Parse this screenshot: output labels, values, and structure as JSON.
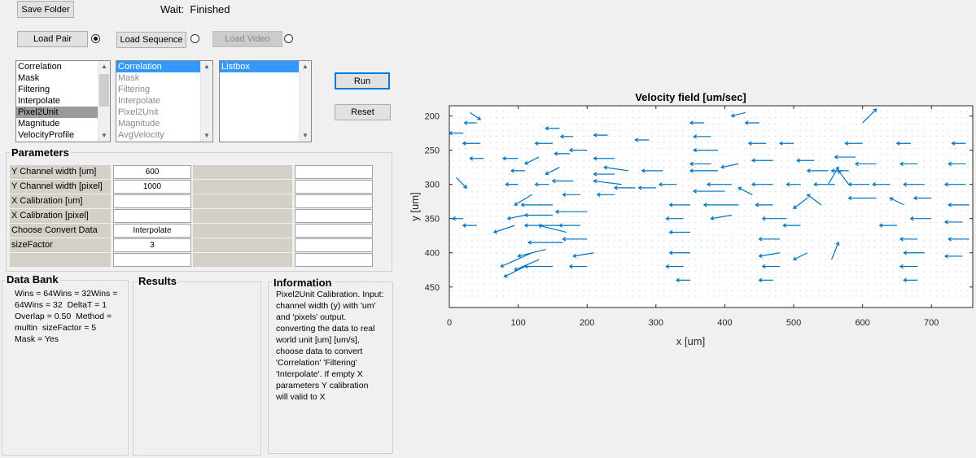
{
  "toolbar": {
    "save_folder": "Save Folder",
    "status_prefix": "Wait:",
    "status_value": "Finished",
    "load_pair": "Load Pair",
    "load_sequence": "Load Sequence",
    "load_video": "Load Video",
    "run": "Run",
    "reset": "Reset"
  },
  "process_list": {
    "items": [
      "Correlation",
      "Mask",
      "Filtering",
      "Interpolate",
      "Pixel2Unit",
      "Magnitude",
      "VelocityProfile"
    ],
    "selected_index": 4
  },
  "step_list": {
    "items": [
      "Correlation",
      "Mask",
      "Filtering",
      "Interpolate",
      "Pixel2Unit",
      "Magnitude",
      "AvgVelocity"
    ],
    "selected_index": 0
  },
  "output_list": {
    "items": [
      "Listbox"
    ],
    "selected_index": 0
  },
  "parameters": {
    "title": "Parameters",
    "rows": [
      {
        "label": "Y Channel width [um]",
        "value": "600"
      },
      {
        "label": "Y Channel width [pixel]",
        "value": "1000"
      },
      {
        "label": "X Calibration [um]",
        "value": ""
      },
      {
        "label": "X Calibration [pixel]",
        "value": ""
      },
      {
        "label": "Choose Convert Data",
        "value": "Interpolate"
      },
      {
        "label": "sizeFactor",
        "value": "3"
      },
      {
        "label": "",
        "value": ""
      }
    ]
  },
  "data_bank": {
    "title": "Data Bank",
    "text": "Wins = 64Wins = 32Wins =\n64Wins = 32  DeltaT = 1\nOverlap = 0.50  Method =\nmultin  sizeFactor = 5\nMask = Yes"
  },
  "results": {
    "title": "Results"
  },
  "information": {
    "title": "Information",
    "text": "Pixel2Unit Calibration. Input:\nchannel width (y) with 'um'\nand 'pixels' output.\nconverting the data to real\nworld unit [um] [um/s],\nchoose data to convert\n'Correlation' 'Filtering'\n'Interpolate'. If empty X\nparameters Y calibration\nwill valid to X"
  },
  "chart_data": {
    "type": "quiver",
    "title": "Velocity field [um/sec]",
    "xlabel": "x [um]",
    "ylabel": "y [um]",
    "xlim": [
      0,
      760
    ],
    "ylim": [
      185,
      480
    ],
    "y_inverted": true,
    "xticks": [
      0,
      100,
      200,
      300,
      400,
      500,
      600,
      700
    ],
    "yticks": [
      200,
      250,
      300,
      350,
      400,
      450
    ],
    "arrow_color": "#0072bd",
    "grid": false,
    "vectors": [
      [
        30,
        195,
        15,
        10
      ],
      [
        40,
        210,
        -18,
        0
      ],
      [
        20,
        225,
        -20,
        0
      ],
      [
        45,
        240,
        -25,
        0
      ],
      [
        50,
        262,
        -20,
        0
      ],
      [
        10,
        290,
        15,
        15
      ],
      [
        20,
        350,
        -15,
        0
      ],
      [
        40,
        360,
        -20,
        0
      ],
      [
        100,
        262,
        -22,
        0
      ],
      [
        110,
        280,
        -20,
        0
      ],
      [
        100,
        300,
        -18,
        0
      ],
      [
        120,
        315,
        -25,
        15
      ],
      [
        160,
        218,
        -20,
        0
      ],
      [
        150,
        240,
        -25,
        0
      ],
      [
        160,
        275,
        -20,
        10
      ],
      [
        145,
        300,
        -20,
        0
      ],
      [
        150,
        330,
        -45,
        0
      ],
      [
        150,
        345,
        -40,
        0
      ],
      [
        160,
        360,
        -50,
        0
      ],
      [
        170,
        370,
        -40,
        -10
      ],
      [
        165,
        385,
        -50,
        0
      ],
      [
        140,
        395,
        -40,
        10
      ],
      [
        130,
        410,
        -35,
        15
      ],
      [
        150,
        420,
        -40,
        0
      ],
      [
        180,
        230,
        -18,
        0
      ],
      [
        175,
        255,
        -22,
        0
      ],
      [
        180,
        295,
        -30,
        0
      ],
      [
        190,
        315,
        -25,
        0
      ],
      [
        200,
        340,
        -45,
        0
      ],
      [
        190,
        360,
        -30,
        0
      ],
      [
        200,
        380,
        -35,
        0
      ],
      [
        210,
        400,
        -30,
        5
      ],
      [
        200,
        420,
        -25,
        0
      ],
      [
        230,
        228,
        -20,
        0
      ],
      [
        240,
        262,
        -30,
        0
      ],
      [
        240,
        285,
        -30,
        0
      ],
      [
        250,
        300,
        -40,
        -5
      ],
      [
        240,
        315,
        -25,
        0
      ],
      [
        270,
        305,
        -30,
        0
      ],
      [
        300,
        305,
        -25,
        0
      ],
      [
        330,
        300,
        -25,
        0
      ],
      [
        350,
        330,
        -30,
        0
      ],
      [
        340,
        350,
        -25,
        0
      ],
      [
        350,
        370,
        -30,
        0
      ],
      [
        350,
        400,
        -30,
        0
      ],
      [
        340,
        420,
        -25,
        0
      ],
      [
        350,
        440,
        -20,
        0
      ],
      [
        370,
        210,
        -20,
        0
      ],
      [
        380,
        230,
        -25,
        0
      ],
      [
        390,
        250,
        -35,
        0
      ],
      [
        380,
        270,
        -30,
        0
      ],
      [
        390,
        280,
        -40,
        0
      ],
      [
        410,
        300,
        -35,
        0
      ],
      [
        400,
        310,
        -45,
        0
      ],
      [
        420,
        330,
        -50,
        0
      ],
      [
        410,
        345,
        -30,
        5
      ],
      [
        450,
        210,
        -20,
        0
      ],
      [
        460,
        240,
        -25,
        0
      ],
      [
        470,
        265,
        -30,
        0
      ],
      [
        470,
        300,
        -30,
        0
      ],
      [
        470,
        330,
        -25,
        0
      ],
      [
        490,
        350,
        -35,
        0
      ],
      [
        480,
        380,
        -30,
        0
      ],
      [
        480,
        400,
        -30,
        5
      ],
      [
        480,
        420,
        -25,
        0
      ],
      [
        470,
        440,
        -20,
        0
      ],
      [
        510,
        300,
        -20,
        0
      ],
      [
        520,
        320,
        -20,
        15
      ],
      [
        530,
        265,
        -25,
        0
      ],
      [
        550,
        280,
        -30,
        0
      ],
      [
        560,
        300,
        -30,
        0
      ],
      [
        580,
        300,
        -15,
        -20
      ],
      [
        590,
        260,
        -30,
        0
      ],
      [
        580,
        280,
        -25,
        0
      ],
      [
        610,
        300,
        -30,
        0
      ],
      [
        620,
        320,
        -40,
        0
      ],
      [
        640,
        300,
        -25,
        0
      ],
      [
        600,
        210,
        20,
        -20
      ],
      [
        550,
        300,
        15,
        -25
      ],
      [
        540,
        330,
        -20,
        -15
      ],
      [
        670,
        240,
        -20,
        0
      ],
      [
        680,
        270,
        -25,
        0
      ],
      [
        690,
        300,
        -30,
        0
      ],
      [
        700,
        320,
        -25,
        0
      ],
      [
        700,
        350,
        -30,
        0
      ],
      [
        680,
        380,
        -25,
        0
      ],
      [
        690,
        400,
        -30,
        0
      ],
      [
        680,
        420,
        -25,
        0
      ],
      [
        680,
        440,
        -20,
        0
      ],
      [
        750,
        240,
        -20,
        0
      ],
      [
        750,
        270,
        -25,
        0
      ],
      [
        750,
        300,
        -30,
        0
      ],
      [
        755,
        330,
        -30,
        0
      ],
      [
        745,
        355,
        -25,
        0
      ],
      [
        755,
        380,
        -30,
        0
      ],
      [
        745,
        405,
        -25,
        0
      ],
      [
        110,
        345,
        -25,
        5
      ],
      [
        95,
        360,
        -30,
        10
      ],
      [
        120,
        400,
        -45,
        20
      ],
      [
        110,
        420,
        -30,
        15
      ],
      [
        260,
        280,
        -35,
        -5
      ],
      [
        310,
        280,
        -30,
        0
      ],
      [
        420,
        270,
        -25,
        5
      ],
      [
        440,
        315,
        -20,
        -10
      ],
      [
        600,
        240,
        -25,
        0
      ],
      [
        620,
        270,
        -30,
        0
      ],
      [
        650,
        360,
        -25,
        0
      ],
      [
        660,
        330,
        -20,
        -10
      ],
      [
        130,
        260,
        -20,
        10
      ],
      [
        200,
        250,
        -25,
        0
      ],
      [
        290,
        235,
        -20,
        0
      ],
      [
        430,
        195,
        -20,
        5
      ],
      [
        510,
        360,
        -25,
        0
      ],
      [
        520,
        400,
        -20,
        10
      ],
      [
        555,
        410,
        10,
        -25
      ],
      [
        500,
        240,
        -20,
        0
      ]
    ]
  }
}
